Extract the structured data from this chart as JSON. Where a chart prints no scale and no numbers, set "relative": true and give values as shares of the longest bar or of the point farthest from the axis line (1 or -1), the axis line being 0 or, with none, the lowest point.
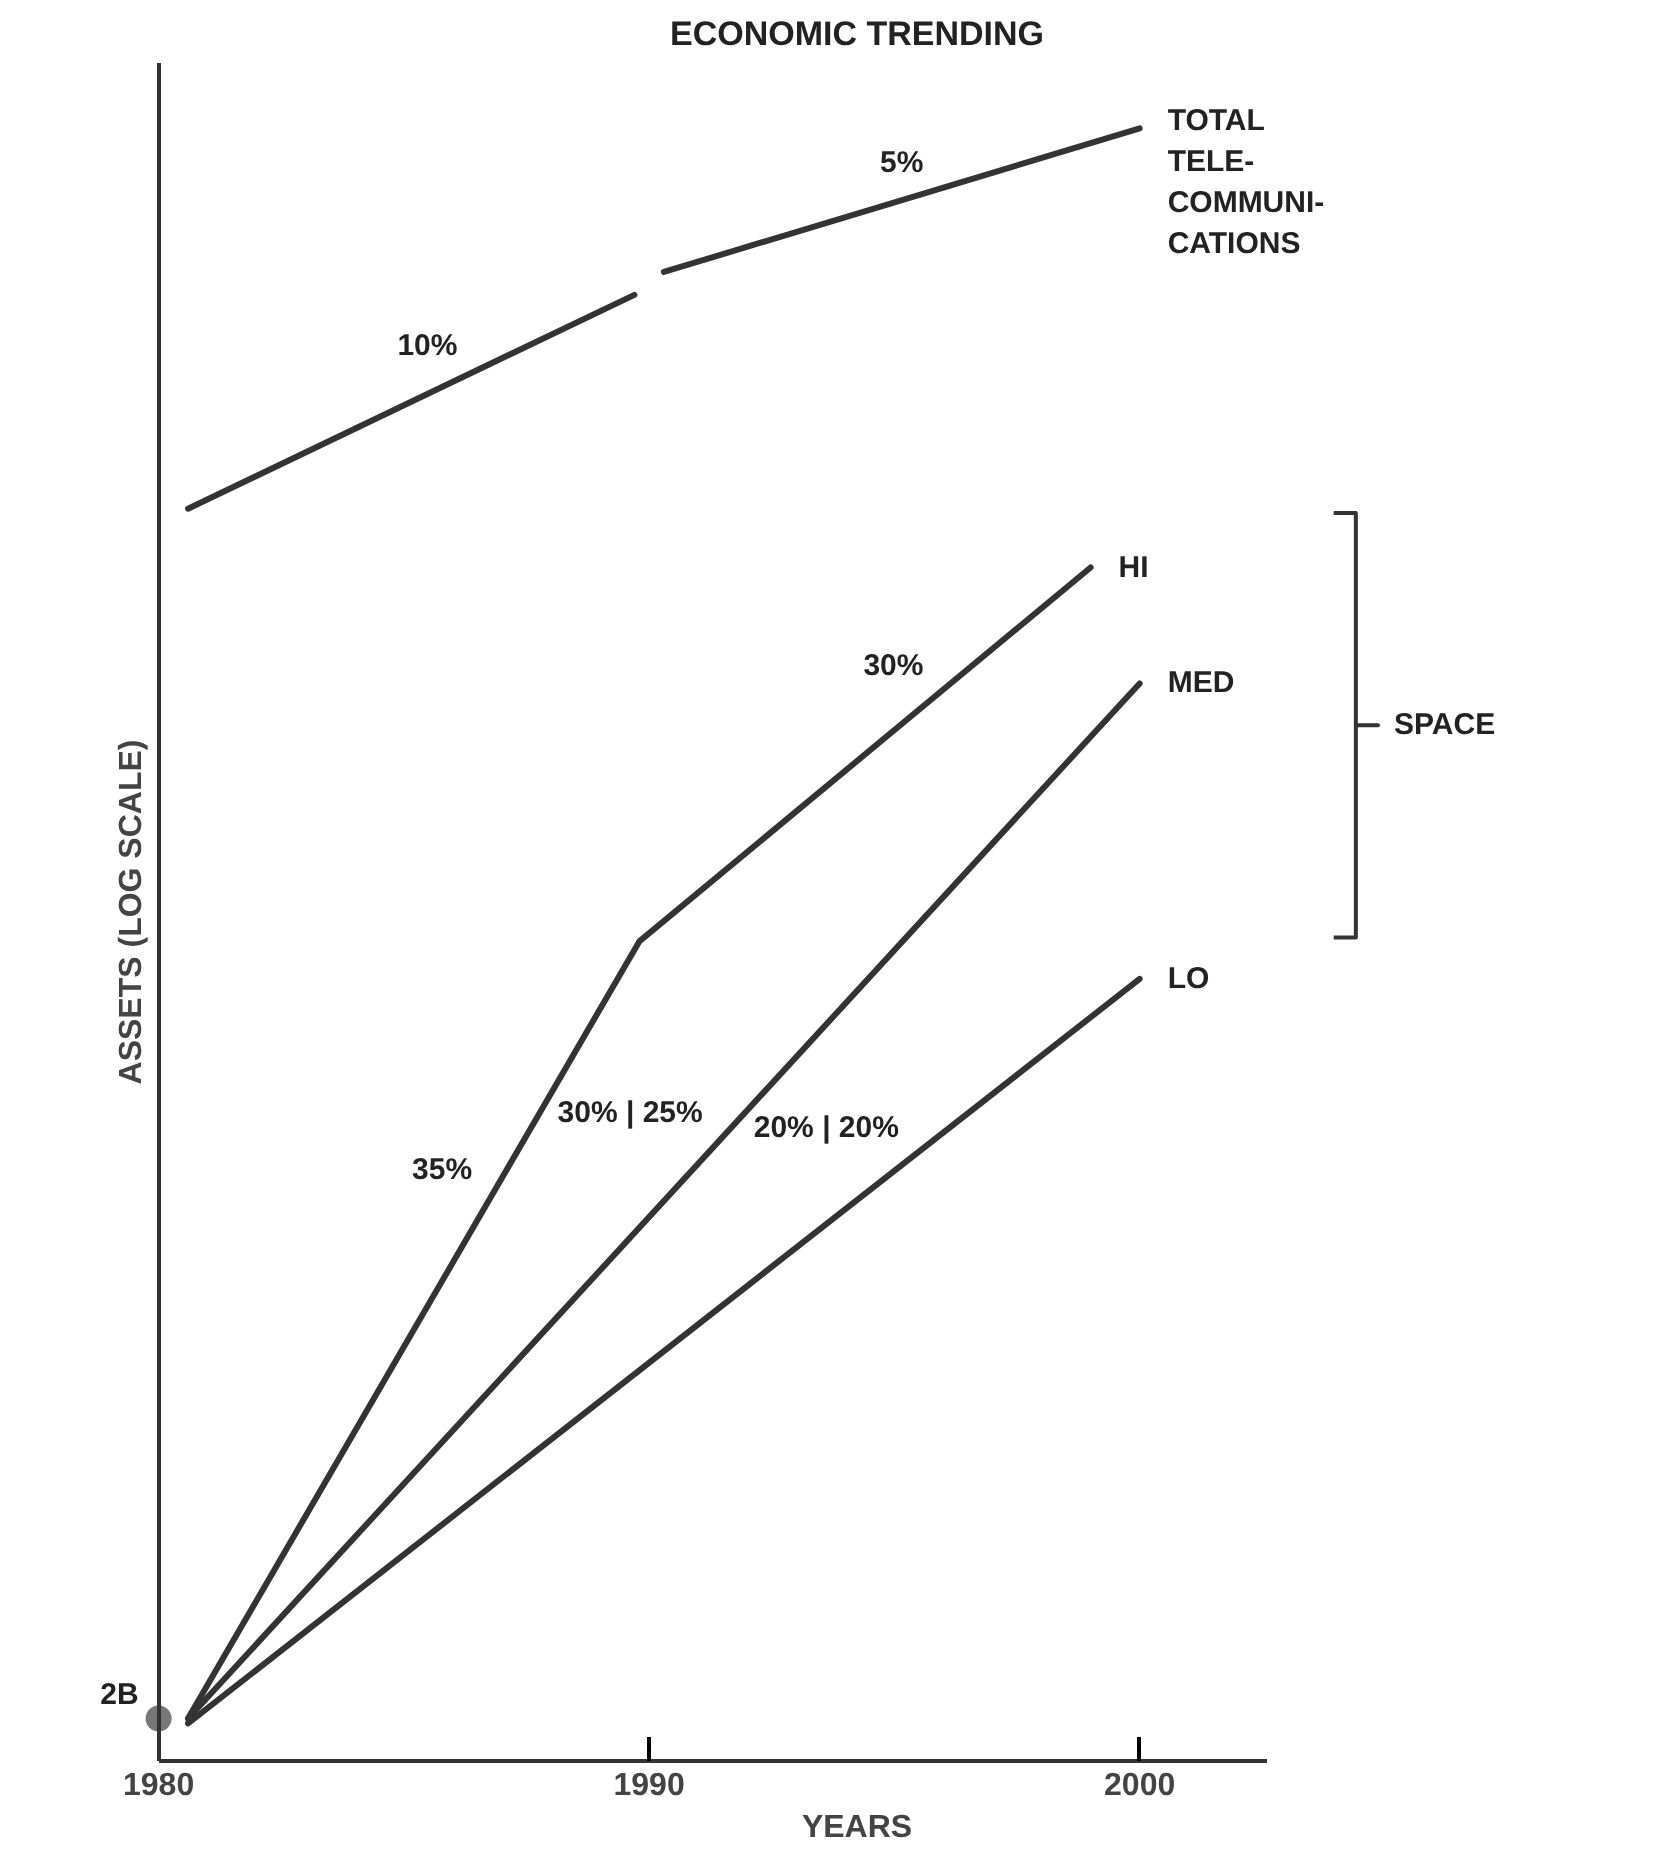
{
  "chart_data": {
    "type": "line",
    "title": "ECONOMIC TRENDING",
    "xlabel": "YEARS",
    "ylabel": "ASSETS (LOG SCALE)",
    "relative": true,
    "xlim": [
      1980,
      2002.6
    ],
    "xticks": [
      1980,
      1990,
      2000
    ],
    "tick_labels": "x",
    "grid": false,
    "marker": "none",
    "line_style": "solid",
    "series": [
      {
        "name": "TOTAL\nTELE-\nCOMMUNI-\nCATIONS",
        "color": "#333333",
        "x": [
          1980.6,
          1989.7,
          1990,
          1990.3,
          2000
        ],
        "values": [
          0.767,
          0.898,
          null,
          0.912,
          1.0
        ]
      },
      {
        "name": "HI",
        "color": "#333333",
        "x": [
          1980.6,
          1989.8,
          1999
        ],
        "values": [
          0.026,
          0.502,
          0.731
        ]
      },
      {
        "name": "MED",
        "color": "#333333",
        "x": [
          1980.6,
          2000
        ],
        "values": [
          0.026,
          0.66
        ]
      },
      {
        "name": "LO",
        "color": "#333333",
        "x": [
          1980.6,
          2000
        ],
        "values": [
          0.023,
          0.479
        ]
      },
      {
        "type": "scatter",
        "marker": "circle",
        "color": "#777777",
        "x": [
          1980
        ],
        "values": [
          0.026
        ]
      }
    ],
    "annotations": [
      {
        "text": "2B",
        "x": 1980,
        "y": 0.026
      },
      {
        "text": "10%",
        "x": 1986.5,
        "y": 0.852
      },
      {
        "text": "5%",
        "x": 1996,
        "y": 0.964
      },
      {
        "text": "35%",
        "x": 1986.8,
        "y": 0.347
      },
      {
        "text": "30%",
        "x": 1996,
        "y": 0.656
      },
      {
        "text": "30% | 25%",
        "x": 1991.5,
        "y": 0.382
      },
      {
        "text": "20% | 20%",
        "x": 1995.5,
        "y": 0.373
      },
      "SPACE"
    ]
  }
}
